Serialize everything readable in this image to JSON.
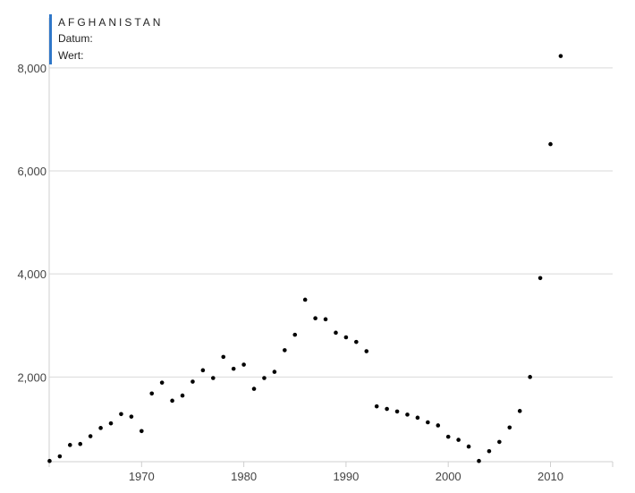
{
  "info": {
    "country": "AFGHANISTAN",
    "datum_label": "Datum:",
    "wert_label": "Wert:"
  },
  "colors": {
    "accent": "#2f77c8",
    "points": "#000000",
    "grid": "#d9d9d9"
  },
  "chart_data": {
    "type": "scatter",
    "title": "",
    "xlabel": "",
    "ylabel": "",
    "xlim": [
      1961,
      2016
    ],
    "ylim": [
      0,
      8700
    ],
    "yticks": [
      2000,
      4000,
      6000,
      8000
    ],
    "ytick_labels": [
      "2,000",
      "4,000",
      "6,000",
      "8,000"
    ],
    "xticks": [
      1970,
      1980,
      1990,
      2000,
      2010
    ],
    "xtick_labels": [
      "1970",
      "1980",
      "1990",
      "2000",
      "2010"
    ],
    "grid": true,
    "points": [
      [
        1961,
        370
      ],
      [
        1962,
        460
      ],
      [
        1963,
        680
      ],
      [
        1964,
        700
      ],
      [
        1965,
        850
      ],
      [
        1966,
        1010
      ],
      [
        1967,
        1100
      ],
      [
        1968,
        1280
      ],
      [
        1969,
        1230
      ],
      [
        1970,
        950
      ],
      [
        1971,
        1680
      ],
      [
        1972,
        1890
      ],
      [
        1973,
        1540
      ],
      [
        1974,
        1640
      ],
      [
        1975,
        1910
      ],
      [
        1976,
        2130
      ],
      [
        1977,
        1980
      ],
      [
        1978,
        2390
      ],
      [
        1979,
        2160
      ],
      [
        1980,
        2240
      ],
      [
        1981,
        1770
      ],
      [
        1982,
        1980
      ],
      [
        1983,
        2100
      ],
      [
        1984,
        2520
      ],
      [
        1985,
        2820
      ],
      [
        1986,
        3500
      ],
      [
        1987,
        3140
      ],
      [
        1988,
        3120
      ],
      [
        1989,
        2860
      ],
      [
        1990,
        2770
      ],
      [
        1991,
        2680
      ],
      [
        1992,
        2500
      ],
      [
        1993,
        1430
      ],
      [
        1994,
        1380
      ],
      [
        1995,
        1330
      ],
      [
        1996,
        1270
      ],
      [
        1997,
        1210
      ],
      [
        1998,
        1120
      ],
      [
        1999,
        1060
      ],
      [
        2000,
        840
      ],
      [
        2001,
        780
      ],
      [
        2002,
        650
      ],
      [
        2003,
        370
      ],
      [
        2004,
        560
      ],
      [
        2005,
        740
      ],
      [
        2006,
        1020
      ],
      [
        2007,
        1340
      ],
      [
        2008,
        2000
      ],
      [
        2009,
        3920
      ],
      [
        2010,
        6520
      ],
      [
        2011,
        8230
      ]
    ]
  }
}
